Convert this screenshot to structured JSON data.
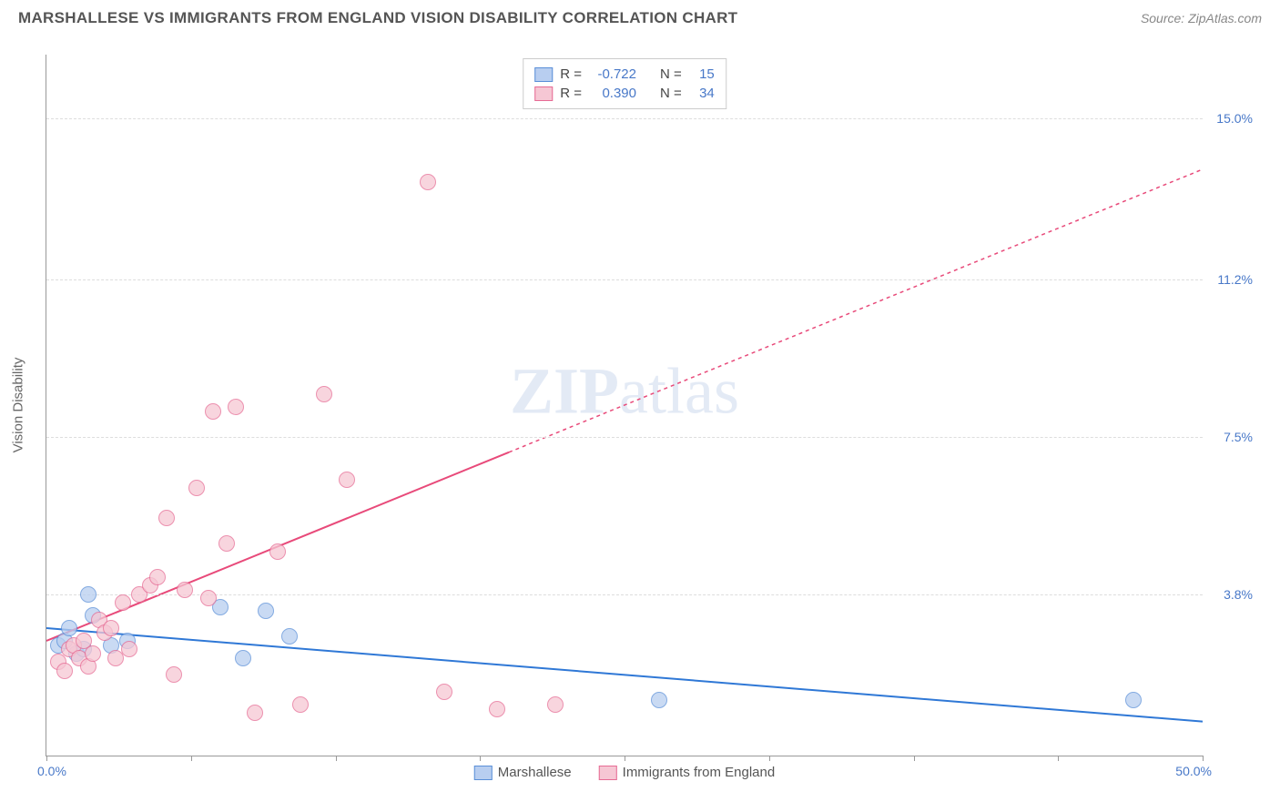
{
  "header": {
    "title": "MARSHALLESE VS IMMIGRANTS FROM ENGLAND VISION DISABILITY CORRELATION CHART",
    "source": "Source: ZipAtlas.com"
  },
  "chart": {
    "type": "scatter",
    "y_axis_title": "Vision Disability",
    "watermark_zip": "ZIP",
    "watermark_atlas": "atlas",
    "xlim": [
      0,
      50
    ],
    "ylim": [
      0,
      16.5
    ],
    "x_label_min": "0.0%",
    "x_label_max": "50.0%",
    "y_ticks": [
      {
        "value": 3.8,
        "label": "3.8%"
      },
      {
        "value": 7.5,
        "label": "7.5%"
      },
      {
        "value": 11.2,
        "label": "11.2%"
      },
      {
        "value": 15.0,
        "label": "15.0%"
      }
    ],
    "x_tick_positions": [
      0,
      6.25,
      12.5,
      18.75,
      25,
      31.25,
      37.5,
      43.75,
      50
    ],
    "background_color": "#ffffff",
    "grid_color": "#dddddd",
    "marker_radius": 8,
    "series": [
      {
        "key": "marshallese",
        "label": "Marshallese",
        "point_fill": "#b8cef0",
        "point_stroke": "#5a8fd8",
        "line_color": "#2f78d6",
        "line_dash": "none",
        "R": "-0.722",
        "N": "15",
        "trend": {
          "x1": 0,
          "y1": 3.0,
          "x2": 50,
          "y2": 0.8
        },
        "points": [
          {
            "x": 0.5,
            "y": 2.6
          },
          {
            "x": 0.8,
            "y": 2.7
          },
          {
            "x": 1.0,
            "y": 3.0
          },
          {
            "x": 1.3,
            "y": 2.4
          },
          {
            "x": 1.6,
            "y": 2.5
          },
          {
            "x": 1.8,
            "y": 3.8
          },
          {
            "x": 2.0,
            "y": 3.3
          },
          {
            "x": 2.8,
            "y": 2.6
          },
          {
            "x": 3.5,
            "y": 2.7
          },
          {
            "x": 7.5,
            "y": 3.5
          },
          {
            "x": 8.5,
            "y": 2.3
          },
          {
            "x": 9.5,
            "y": 3.4
          },
          {
            "x": 10.5,
            "y": 2.8
          },
          {
            "x": 26.5,
            "y": 1.3
          },
          {
            "x": 47.0,
            "y": 1.3
          }
        ]
      },
      {
        "key": "england",
        "label": "Immigrants from England",
        "point_fill": "#f6c7d4",
        "point_stroke": "#e66b94",
        "line_color": "#e84a7a",
        "line_dash": "4,4",
        "R": "0.390",
        "N": "34",
        "trend": {
          "x1": 0,
          "y1": 2.7,
          "x2": 50,
          "y2": 13.8
        },
        "trend_solid_until_x": 20,
        "points": [
          {
            "x": 0.5,
            "y": 2.2
          },
          {
            "x": 0.8,
            "y": 2.0
          },
          {
            "x": 1.0,
            "y": 2.5
          },
          {
            "x": 1.2,
            "y": 2.6
          },
          {
            "x": 1.4,
            "y": 2.3
          },
          {
            "x": 1.6,
            "y": 2.7
          },
          {
            "x": 1.8,
            "y": 2.1
          },
          {
            "x": 2.0,
            "y": 2.4
          },
          {
            "x": 2.3,
            "y": 3.2
          },
          {
            "x": 2.5,
            "y": 2.9
          },
          {
            "x": 2.8,
            "y": 3.0
          },
          {
            "x": 3.0,
            "y": 2.3
          },
          {
            "x": 3.3,
            "y": 3.6
          },
          {
            "x": 3.6,
            "y": 2.5
          },
          {
            "x": 4.0,
            "y": 3.8
          },
          {
            "x": 4.5,
            "y": 4.0
          },
          {
            "x": 4.8,
            "y": 4.2
          },
          {
            "x": 5.2,
            "y": 5.6
          },
          {
            "x": 5.5,
            "y": 1.9
          },
          {
            "x": 6.0,
            "y": 3.9
          },
          {
            "x": 6.5,
            "y": 6.3
          },
          {
            "x": 7.0,
            "y": 3.7
          },
          {
            "x": 7.2,
            "y": 8.1
          },
          {
            "x": 7.8,
            "y": 5.0
          },
          {
            "x": 8.2,
            "y": 8.2
          },
          {
            "x": 9.0,
            "y": 1.0
          },
          {
            "x": 10.0,
            "y": 4.8
          },
          {
            "x": 11.0,
            "y": 1.2
          },
          {
            "x": 12.0,
            "y": 8.5
          },
          {
            "x": 13.0,
            "y": 6.5
          },
          {
            "x": 16.5,
            "y": 13.5
          },
          {
            "x": 17.2,
            "y": 1.5
          },
          {
            "x": 19.5,
            "y": 1.1
          },
          {
            "x": 22.0,
            "y": 1.2
          }
        ]
      }
    ]
  },
  "stats_legend": {
    "r_label": "R =",
    "n_label": "N ="
  }
}
